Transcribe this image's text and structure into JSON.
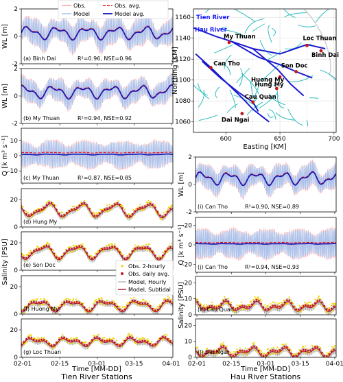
{
  "chart_data": {
    "type": "line",
    "x_ticks": [
      "02-01",
      "02-15",
      "03-01",
      "03-15",
      "04-01"
    ],
    "x_label": "Time [MM-DD]",
    "footer_left": "Tien River Stations",
    "footer_right": "Hau River Stations",
    "top_legend": {
      "obs": "Obs.",
      "model": "Model",
      "obs_avg": "Obs. avg.",
      "model_avg": "Model avg."
    },
    "salinity_legend": {
      "obs2h": "Obs. 2-hourly",
      "obsd": "Obs. daily avg.",
      "mhr": "Model, Hourly",
      "msub": "Model, Subtidal"
    },
    "colors": {
      "obs": "#ff9a9a",
      "model": "#9ec5f5",
      "obs_avg": "#e3101a",
      "model_avg": "#1216b8",
      "obs2h": "#f2d400",
      "obsd": "#cc1020",
      "mhr": "#9b9b9b",
      "msub": "#b01030",
      "map_land": "#cfcfcf",
      "map_canal": "#2ebcbc",
      "map_river": "#1a1ad0",
      "map_station": "#c01818"
    },
    "panels": [
      {
        "label": "(a) Binh Dai",
        "stat": "R²=0.96, NSE=0.96",
        "ylabel": "WL [m]",
        "yticks": [
          "-2",
          "0",
          "2"
        ],
        "ylim": [
          -2,
          2
        ],
        "kind": "wl",
        "amp": 1.0,
        "mean": 0.25
      },
      {
        "label": "(b) My Thuan",
        "stat": "R²=0.94, NSE=0.92",
        "ylabel": "WL [m]",
        "yticks": [
          "-2",
          "0",
          "2"
        ],
        "ylim": [
          -2,
          2
        ],
        "kind": "wl",
        "amp": 0.85,
        "mean": 0.3
      },
      {
        "label": "(c) My Thuan",
        "stat": "R²=0.87, NSE=0.85",
        "ylabel": "Q [k m³ s⁻¹]",
        "yticks": [
          "-10",
          "0",
          "10"
        ],
        "ylim": [
          -18,
          18
        ],
        "kind": "q",
        "amp": 9,
        "mean": 0.8
      },
      {
        "label": "(d) Hung My",
        "ylabel": "",
        "yticks": [
          "0",
          "20"
        ],
        "ylim": [
          0,
          28
        ],
        "kind": "sal",
        "mean": 12,
        "amp": 4
      },
      {
        "label": "(e) Son Doc",
        "ylabel": "",
        "yticks": [
          "0",
          "20"
        ],
        "ylim": [
          0,
          28
        ],
        "kind": "sal",
        "mean": 13,
        "amp": 4
      },
      {
        "label": "(f)  Huong My",
        "ylabel": "Salinity [PSU]",
        "yticks": [
          "0",
          "20"
        ],
        "ylim": [
          0,
          28
        ],
        "kind": "sal",
        "mean": 6,
        "amp": 3
      },
      {
        "label": "(g) Loc Thuan",
        "ylabel": "",
        "yticks": [
          "0",
          "20"
        ],
        "ylim": [
          0,
          28
        ],
        "kind": "sal",
        "mean": 11,
        "amp": 2
      },
      {
        "label": "(i) Can Tho",
        "stat": "R²=0.90, NSE=0.89",
        "ylabel": "WL [m]",
        "yticks": [
          "-2",
          "0",
          "2"
        ],
        "ylim": [
          -2,
          2
        ],
        "kind": "wl",
        "amp": 0.9,
        "mean": 0.45
      },
      {
        "label": "(j) Can Tho",
        "stat": "R²=0.94, NSE=0.93",
        "ylabel": "Q [k m³ s⁻¹]",
        "yticks": [
          "-20",
          "0",
          "20"
        ],
        "ylim": [
          -28,
          28
        ],
        "kind": "q",
        "amp": 15,
        "mean": 1
      },
      {
        "label": "(k) Cau Quan",
        "ylabel": "",
        "yticks": [
          "0",
          "10",
          "20"
        ],
        "ylim": [
          0,
          24
        ],
        "kind": "sal",
        "mean": 5,
        "amp": 2
      },
      {
        "label": "(l)  Dai Ngai",
        "ylabel": "Salinity [PSU]",
        "yticks": [
          "0",
          "10",
          "20"
        ],
        "ylim": [
          0,
          24
        ],
        "kind": "sal",
        "mean": 3,
        "amp": 2
      }
    ],
    "map": {
      "xlabel": "Easting [KM]",
      "ylabel": "Northing [KM]",
      "xticks": [
        "600",
        "650",
        "700"
      ],
      "yticks": [
        "1060",
        "1080",
        "1100",
        "1120",
        "1140",
        "1160"
      ],
      "xlim": [
        570,
        702
      ],
      "ylim": [
        1050,
        1168
      ],
      "rivers": [
        "Tien River",
        "Hau River"
      ],
      "stations": [
        {
          "name": "My Thuan",
          "e": 603,
          "n": 1136
        },
        {
          "name": "Loc Thuan",
          "e": 675,
          "n": 1133
        },
        {
          "name": "Binh Dai",
          "e": 688,
          "n": 1128
        },
        {
          "name": "Son Doc",
          "e": 665,
          "n": 1108
        },
        {
          "name": "Can Tho",
          "e": 586,
          "n": 1112
        },
        {
          "name": "Huong My",
          "e": 650,
          "n": 1103
        },
        {
          "name": "Hung My",
          "e": 647,
          "n": 1092
        },
        {
          "name": "Cau Quan",
          "e": 625,
          "n": 1079
        },
        {
          "name": "Dai Ngai",
          "e": 615,
          "n": 1068
        }
      ]
    }
  }
}
